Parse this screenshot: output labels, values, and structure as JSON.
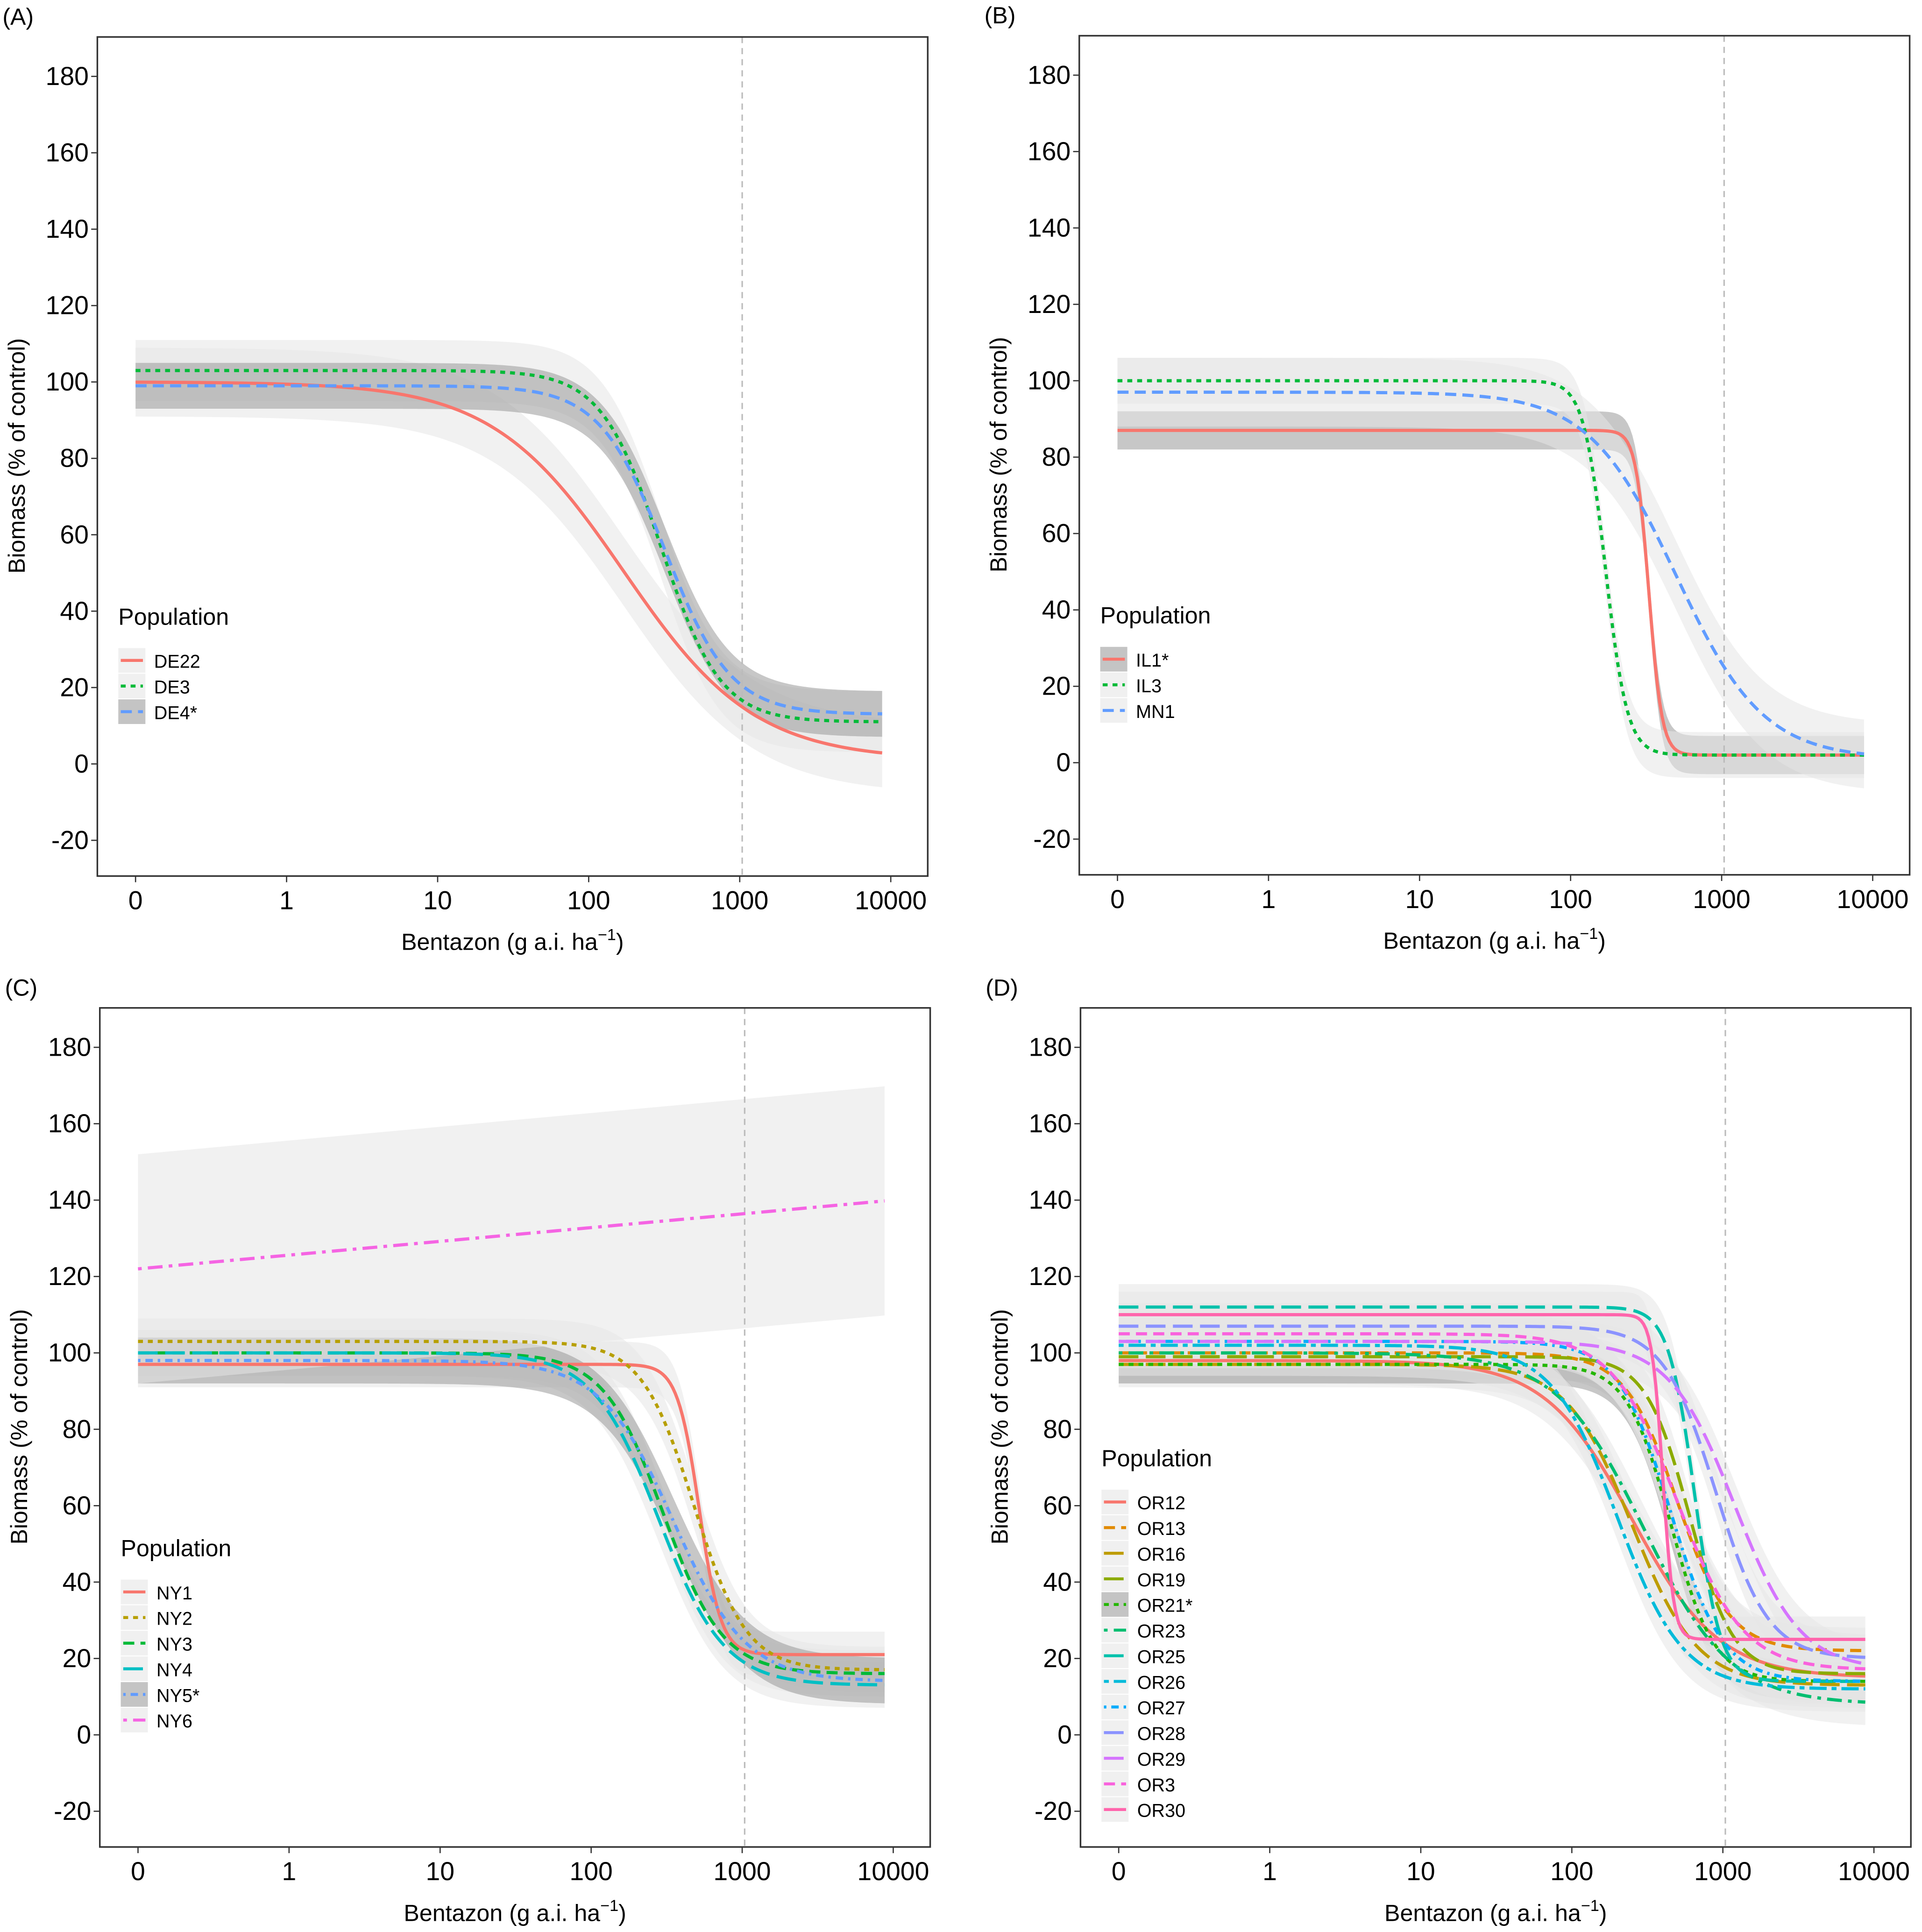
{
  "chart_data": [
    {
      "type": "line",
      "panel_label": "(A)",
      "xlabel": "Bentazon (g a.i. ha",
      "xlabel_sup": "−1",
      "xlabel_close": ")",
      "ylabel": "Biomass (% of control)",
      "x_scale": "log (0 shown at one decade below 1)",
      "x_ticks": [
        "0",
        "1",
        "10",
        "100",
        "1000",
        "10000"
      ],
      "y_ticks": [
        "-20",
        "0",
        "20",
        "40",
        "60",
        "80",
        "100",
        "120",
        "140",
        "160",
        "180"
      ],
      "ylim": [
        -30,
        190
      ],
      "reference_line_x": 1000,
      "legend_title": "Population",
      "legend_position": "left-middle",
      "series": [
        {
          "name": "DE22",
          "color": "#F8766D",
          "linetype": "solid",
          "model": "log-logistic",
          "upper": 100,
          "lower": 1,
          "ed50": 170,
          "slope": 1,
          "ci_halfwidth": 9,
          "ci_dark": false
        },
        {
          "name": "DE3",
          "color": "#00BA38",
          "linetype": "dotted",
          "model": "log-logistic",
          "upper": 103,
          "lower": 11,
          "ed50": 300,
          "slope": 2.2,
          "ci_halfwidth": 8,
          "ci_dark": false
        },
        {
          "name": "DE4*",
          "color": "#619CFF",
          "linetype": "dashed",
          "model": "log-logistic",
          "upper": 99,
          "lower": 13,
          "ed50": 320,
          "slope": 2,
          "ci_halfwidth": 6,
          "ci_dark": true
        }
      ]
    },
    {
      "type": "line",
      "panel_label": "(B)",
      "xlabel": "Bentazon (g a.i. ha",
      "xlabel_sup": "−1",
      "xlabel_close": ")",
      "ylabel": "Biomass (% of control)",
      "x_scale": "log (0 shown at one decade below 1)",
      "x_ticks": [
        "0",
        "1",
        "10",
        "100",
        "1000",
        "10000"
      ],
      "y_ticks": [
        "-20",
        "0",
        "20",
        "40",
        "60",
        "80",
        "100",
        "120",
        "140",
        "160",
        "180"
      ],
      "ylim": [
        -30,
        190
      ],
      "reference_line_x": 1000,
      "legend_title": "Population",
      "legend_position": "left-middle",
      "series": [
        {
          "name": "IL1*",
          "color": "#F8766D",
          "linetype": "solid",
          "model": "log-logistic",
          "upper": 87,
          "lower": 2,
          "ed50": 330,
          "slope": 10,
          "ci_halfwidth": 5,
          "ci_dark": true
        },
        {
          "name": "IL3",
          "color": "#00BA38",
          "linetype": "dotted",
          "model": "log-logistic",
          "upper": 100,
          "lower": 2,
          "ed50": 170,
          "slope": 6,
          "ci_halfwidth": 6,
          "ci_dark": false
        },
        {
          "name": "MN1",
          "color": "#619CFF",
          "linetype": "dashed",
          "model": "log-logistic",
          "upper": 97,
          "lower": 1,
          "ed50": 500,
          "slope": 1.5,
          "ci_halfwidth": 9,
          "ci_dark": false
        }
      ]
    },
    {
      "type": "line",
      "panel_label": "(C)",
      "xlabel": "Bentazon (g a.i. ha",
      "xlabel_sup": "−1",
      "xlabel_close": ")",
      "ylabel": "Biomass (% of control)",
      "x_scale": "log (0 shown at one decade below 1)",
      "x_ticks": [
        "0",
        "1",
        "10",
        "100",
        "1000",
        "10000"
      ],
      "y_ticks": [
        "-20",
        "0",
        "20",
        "40",
        "60",
        "80",
        "100",
        "120",
        "140",
        "160",
        "180"
      ],
      "ylim": [
        -30,
        190
      ],
      "reference_line_x": 1000,
      "legend_title": "Population",
      "legend_position": "left-lower",
      "series": [
        {
          "name": "NY1",
          "color": "#F8766D",
          "linetype": "solid",
          "model": "log-logistic",
          "upper": 97,
          "lower": 21,
          "ed50": 520,
          "slope": 6,
          "ci_halfwidth": 6,
          "ci_dark": false
        },
        {
          "name": "NY2",
          "color": "#B79F00",
          "linetype": "dotted",
          "model": "log-logistic",
          "upper": 103,
          "lower": 17,
          "ed50": 480,
          "slope": 2.5,
          "ci_halfwidth": 6,
          "ci_dark": false
        },
        {
          "name": "NY3",
          "color": "#00BA38",
          "linetype": "dashed",
          "model": "log-logistic",
          "upper": 100,
          "lower": 16,
          "ed50": 300,
          "slope": 2.2,
          "ci_halfwidth": 6,
          "ci_dark": false
        },
        {
          "name": "NY4",
          "color": "#00BFC4",
          "linetype": "longdash",
          "model": "log-logistic",
          "upper": 100,
          "lower": 13,
          "ed50": 280,
          "slope": 2,
          "ci_halfwidth": 6,
          "ci_dark": false
        },
        {
          "name": "NY5*",
          "color": "#619CFF",
          "linetype": "dotdash-fine",
          "model": "log-logistic",
          "upper": 98,
          "lower": 14,
          "ed50": 350,
          "slope": 1.8,
          "ci_halfwidth": 6,
          "ci_dark": true
        },
        {
          "name": "NY6",
          "color": "#F564E3",
          "linetype": "dotdash",
          "model": "linear-in-log",
          "y_at_0": 122,
          "y_at_10000": 140,
          "ci_halfwidth": 30,
          "ci_dark": false
        }
      ]
    },
    {
      "type": "line",
      "panel_label": "(D)",
      "xlabel": "Bentazon (g a.i. ha",
      "xlabel_sup": "−1",
      "xlabel_close": ")",
      "ylabel": "Biomass (% of control)",
      "x_scale": "log (0 shown at one decade below 1)",
      "x_ticks": [
        "0",
        "1",
        "10",
        "100",
        "1000",
        "10000"
      ],
      "y_ticks": [
        "-20",
        "0",
        "20",
        "40",
        "60",
        "80",
        "100",
        "120",
        "140",
        "160",
        "180"
      ],
      "ylim": [
        -30,
        190
      ],
      "reference_line_x": 1000,
      "legend_title": "Population",
      "legend_position": "left-lower",
      "series": [
        {
          "name": "OR12",
          "color": "#F8766D",
          "linetype": "solid",
          "model": "log-logistic",
          "upper": 98,
          "lower": 15,
          "ed50": 250,
          "slope": 1.5,
          "ci_halfwidth": 6,
          "ci_dark": false
        },
        {
          "name": "OR13",
          "color": "#E18A00",
          "linetype": "dashed",
          "model": "log-logistic",
          "upper": 100,
          "lower": 22,
          "ed50": 500,
          "slope": 2.5,
          "ci_halfwidth": 6,
          "ci_dark": false
        },
        {
          "name": "OR16",
          "color": "#BE9C00",
          "linetype": "longdash",
          "model": "log-logistic",
          "upper": 97,
          "lower": 13,
          "ed50": 250,
          "slope": 2,
          "ci_halfwidth": 6,
          "ci_dark": false
        },
        {
          "name": "OR19",
          "color": "#8CAB00",
          "linetype": "longdash",
          "model": "log-logistic",
          "upper": 99,
          "lower": 16,
          "ed50": 600,
          "slope": 3,
          "ci_halfwidth": 6,
          "ci_dark": false
        },
        {
          "name": "OR21*",
          "color": "#24B700",
          "linetype": "dotted",
          "model": "log-logistic",
          "upper": 97,
          "lower": 14,
          "ed50": 450,
          "slope": 3,
          "ci_halfwidth": 5,
          "ci_dark": true
        },
        {
          "name": "OR23",
          "color": "#00BE70",
          "linetype": "dotdash",
          "model": "log-logistic",
          "upper": 100,
          "lower": 8,
          "ed50": 300,
          "slope": 1.5,
          "ci_halfwidth": 6,
          "ci_dark": false
        },
        {
          "name": "OR25",
          "color": "#00C1AB",
          "linetype": "longdash",
          "model": "log-logistic",
          "upper": 112,
          "lower": 14,
          "ed50": 650,
          "slope": 5,
          "ci_halfwidth": 6,
          "ci_dark": false
        },
        {
          "name": "OR26",
          "color": "#00BBDA",
          "linetype": "dotdash-long",
          "model": "log-logistic",
          "upper": 102,
          "lower": 12,
          "ed50": 200,
          "slope": 2,
          "ci_halfwidth": 6,
          "ci_dark": false
        },
        {
          "name": "OR27",
          "color": "#00ACFC",
          "linetype": "dotdash-fine",
          "model": "log-logistic",
          "upper": 103,
          "lower": 14,
          "ed50": 450,
          "slope": 2.5,
          "ci_halfwidth": 6,
          "ci_dark": false
        },
        {
          "name": "OR28",
          "color": "#8B93FF",
          "linetype": "longdash",
          "model": "log-logistic",
          "upper": 107,
          "lower": 20,
          "ed50": 900,
          "slope": 2.5,
          "ci_halfwidth": 6,
          "ci_dark": false
        },
        {
          "name": "OR29",
          "color": "#D575FE",
          "linetype": "longdash",
          "model": "log-logistic",
          "upper": 103,
          "lower": 17,
          "ed50": 1200,
          "slope": 2,
          "ci_halfwidth": 6,
          "ci_dark": false
        },
        {
          "name": "OR3",
          "color": "#F962DD",
          "linetype": "dashed",
          "model": "log-logistic",
          "upper": 105,
          "lower": 17,
          "ed50": 500,
          "slope": 2,
          "ci_halfwidth": 6,
          "ci_dark": false
        },
        {
          "name": "OR30",
          "color": "#FF65AC",
          "linetype": "solid",
          "model": "log-logistic",
          "upper": 110,
          "lower": 25,
          "ed50": 400,
          "slope": 12,
          "ci_halfwidth": 6,
          "ci_dark": false
        }
      ]
    }
  ]
}
